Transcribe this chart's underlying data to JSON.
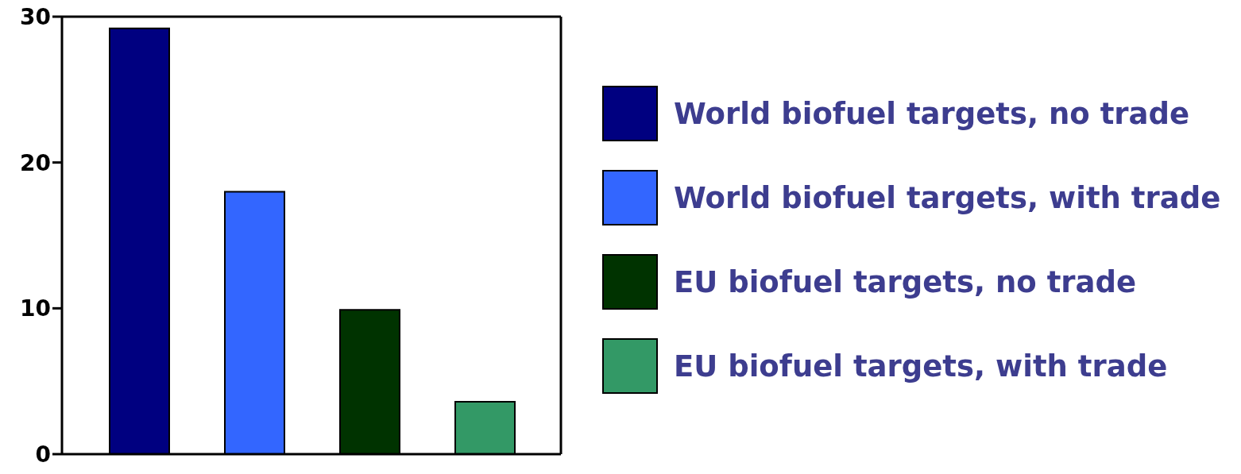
{
  "chart_data": {
    "type": "bar",
    "categories": [
      null
    ],
    "series": [
      {
        "name": "World biofuel targets, no trade",
        "color": "#000080",
        "values": [
          29.2
        ]
      },
      {
        "name": "World biofuel targets, with trade",
        "color": "#3366ff",
        "values": [
          18
        ]
      },
      {
        "name": "EU biofuel targets, no trade",
        "color": "#003300",
        "values": [
          9.9
        ]
      },
      {
        "name": "EU biofuel targets, with trade",
        "color": "#339966",
        "values": [
          3.6
        ]
      }
    ],
    "ylim": [
      0,
      30
    ],
    "yticks": [
      0,
      10,
      20,
      30
    ],
    "grid": false,
    "legend": "right"
  }
}
